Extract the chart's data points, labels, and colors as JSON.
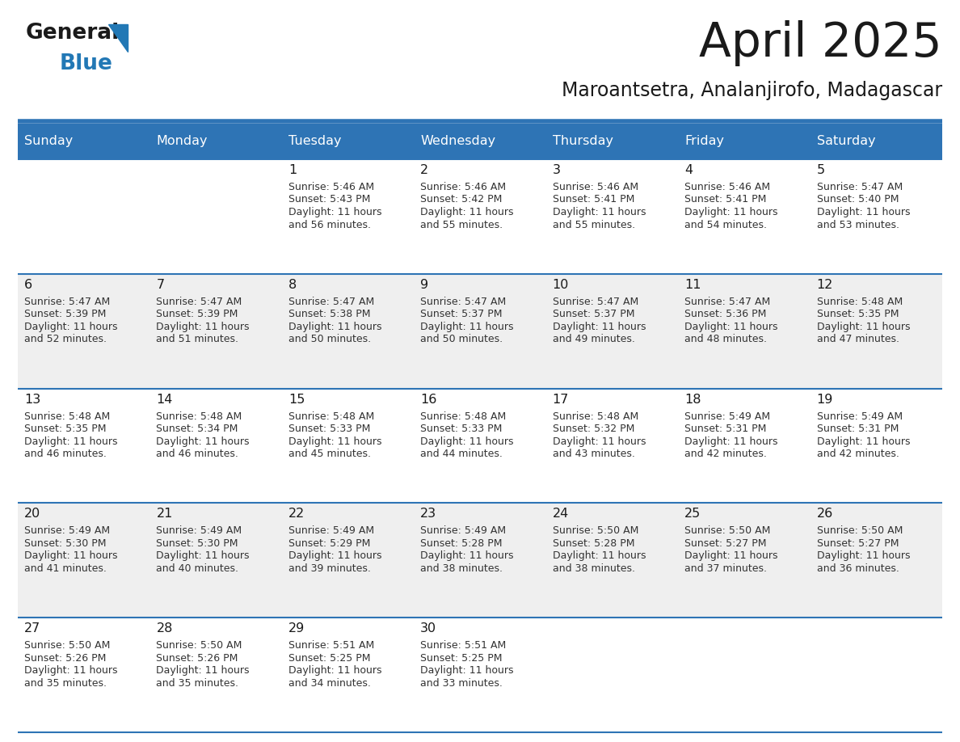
{
  "title": "April 2025",
  "subtitle": "Maroantsetra, Analanjirofo, Madagascar",
  "header_color": "#2E74B5",
  "header_text_color": "#FFFFFF",
  "days_of_week": [
    "Sunday",
    "Monday",
    "Tuesday",
    "Wednesday",
    "Thursday",
    "Friday",
    "Saturday"
  ],
  "background_color": "#FFFFFF",
  "cell_bg_even": "#EFEFEF",
  "cell_bg_odd": "#FFFFFF",
  "grid_line_color": "#2E74B5",
  "day_number_color": "#1A1A1A",
  "cell_text_color": "#333333",
  "logo_general_color": "#1A1A1A",
  "logo_blue_color": "#2278B5",
  "logo_triangle_color": "#2278B5",
  "calendar_data": [
    [
      null,
      null,
      {
        "day": "1",
        "sunrise": "5:46 AM",
        "sunset": "5:43 PM",
        "daylight_h": "11 hours",
        "daylight_m": "56 minutes"
      },
      {
        "day": "2",
        "sunrise": "5:46 AM",
        "sunset": "5:42 PM",
        "daylight_h": "11 hours",
        "daylight_m": "55 minutes"
      },
      {
        "day": "3",
        "sunrise": "5:46 AM",
        "sunset": "5:41 PM",
        "daylight_h": "11 hours",
        "daylight_m": "55 minutes"
      },
      {
        "day": "4",
        "sunrise": "5:46 AM",
        "sunset": "5:41 PM",
        "daylight_h": "11 hours",
        "daylight_m": "54 minutes"
      },
      {
        "day": "5",
        "sunrise": "5:47 AM",
        "sunset": "5:40 PM",
        "daylight_h": "11 hours",
        "daylight_m": "53 minutes"
      }
    ],
    [
      {
        "day": "6",
        "sunrise": "5:47 AM",
        "sunset": "5:39 PM",
        "daylight_h": "11 hours",
        "daylight_m": "52 minutes"
      },
      {
        "day": "7",
        "sunrise": "5:47 AM",
        "sunset": "5:39 PM",
        "daylight_h": "11 hours",
        "daylight_m": "51 minutes"
      },
      {
        "day": "8",
        "sunrise": "5:47 AM",
        "sunset": "5:38 PM",
        "daylight_h": "11 hours",
        "daylight_m": "50 minutes"
      },
      {
        "day": "9",
        "sunrise": "5:47 AM",
        "sunset": "5:37 PM",
        "daylight_h": "11 hours",
        "daylight_m": "50 minutes"
      },
      {
        "day": "10",
        "sunrise": "5:47 AM",
        "sunset": "5:37 PM",
        "daylight_h": "11 hours",
        "daylight_m": "49 minutes"
      },
      {
        "day": "11",
        "sunrise": "5:47 AM",
        "sunset": "5:36 PM",
        "daylight_h": "11 hours",
        "daylight_m": "48 minutes"
      },
      {
        "day": "12",
        "sunrise": "5:48 AM",
        "sunset": "5:35 PM",
        "daylight_h": "11 hours",
        "daylight_m": "47 minutes"
      }
    ],
    [
      {
        "day": "13",
        "sunrise": "5:48 AM",
        "sunset": "5:35 PM",
        "daylight_h": "11 hours",
        "daylight_m": "46 minutes"
      },
      {
        "day": "14",
        "sunrise": "5:48 AM",
        "sunset": "5:34 PM",
        "daylight_h": "11 hours",
        "daylight_m": "46 minutes"
      },
      {
        "day": "15",
        "sunrise": "5:48 AM",
        "sunset": "5:33 PM",
        "daylight_h": "11 hours",
        "daylight_m": "45 minutes"
      },
      {
        "day": "16",
        "sunrise": "5:48 AM",
        "sunset": "5:33 PM",
        "daylight_h": "11 hours",
        "daylight_m": "44 minutes"
      },
      {
        "day": "17",
        "sunrise": "5:48 AM",
        "sunset": "5:32 PM",
        "daylight_h": "11 hours",
        "daylight_m": "43 minutes"
      },
      {
        "day": "18",
        "sunrise": "5:49 AM",
        "sunset": "5:31 PM",
        "daylight_h": "11 hours",
        "daylight_m": "42 minutes"
      },
      {
        "day": "19",
        "sunrise": "5:49 AM",
        "sunset": "5:31 PM",
        "daylight_h": "11 hours",
        "daylight_m": "42 minutes"
      }
    ],
    [
      {
        "day": "20",
        "sunrise": "5:49 AM",
        "sunset": "5:30 PM",
        "daylight_h": "11 hours",
        "daylight_m": "41 minutes"
      },
      {
        "day": "21",
        "sunrise": "5:49 AM",
        "sunset": "5:30 PM",
        "daylight_h": "11 hours",
        "daylight_m": "40 minutes"
      },
      {
        "day": "22",
        "sunrise": "5:49 AM",
        "sunset": "5:29 PM",
        "daylight_h": "11 hours",
        "daylight_m": "39 minutes"
      },
      {
        "day": "23",
        "sunrise": "5:49 AM",
        "sunset": "5:28 PM",
        "daylight_h": "11 hours",
        "daylight_m": "38 minutes"
      },
      {
        "day": "24",
        "sunrise": "5:50 AM",
        "sunset": "5:28 PM",
        "daylight_h": "11 hours",
        "daylight_m": "38 minutes"
      },
      {
        "day": "25",
        "sunrise": "5:50 AM",
        "sunset": "5:27 PM",
        "daylight_h": "11 hours",
        "daylight_m": "37 minutes"
      },
      {
        "day": "26",
        "sunrise": "5:50 AM",
        "sunset": "5:27 PM",
        "daylight_h": "11 hours",
        "daylight_m": "36 minutes"
      }
    ],
    [
      {
        "day": "27",
        "sunrise": "5:50 AM",
        "sunset": "5:26 PM",
        "daylight_h": "11 hours",
        "daylight_m": "35 minutes"
      },
      {
        "day": "28",
        "sunrise": "5:50 AM",
        "sunset": "5:26 PM",
        "daylight_h": "11 hours",
        "daylight_m": "35 minutes"
      },
      {
        "day": "29",
        "sunrise": "5:51 AM",
        "sunset": "5:25 PM",
        "daylight_h": "11 hours",
        "daylight_m": "34 minutes"
      },
      {
        "day": "30",
        "sunrise": "5:51 AM",
        "sunset": "5:25 PM",
        "daylight_h": "11 hours",
        "daylight_m": "33 minutes"
      },
      null,
      null,
      null
    ]
  ]
}
